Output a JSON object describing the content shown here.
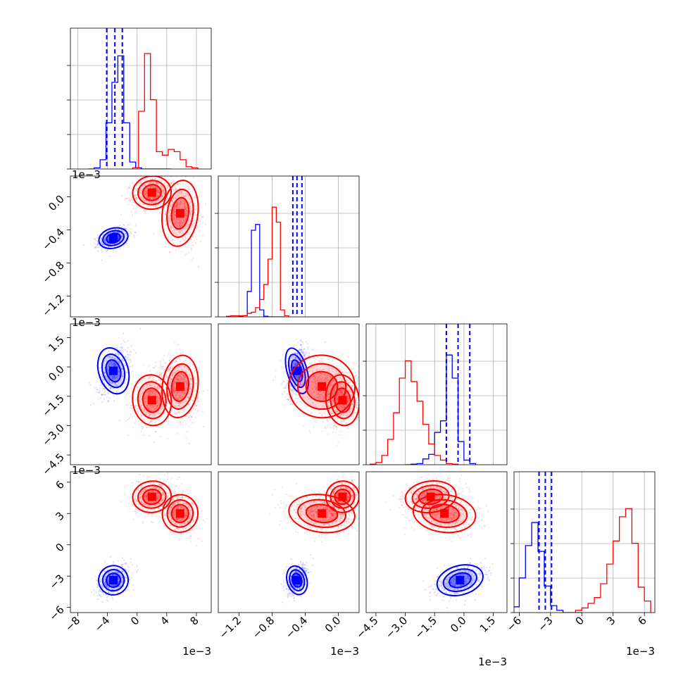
{
  "chart_data": {
    "type": "corner",
    "dims": 4,
    "colors": {
      "a": "#0000ff",
      "b": "#ff0000",
      "grid": "#b0b0b0"
    },
    "series": [
      {
        "color_key": "a"
      },
      {
        "color_key": "b"
      }
    ],
    "ranges": [
      [
        -9,
        10
      ],
      [
        -1.45,
        0.25
      ],
      [
        -5.0,
        2.2
      ],
      [
        -6.5,
        7.0
      ]
    ],
    "ticks": [
      [
        -8,
        -4,
        0,
        4,
        8
      ],
      [
        -1.2,
        -0.8,
        -0.4,
        0.0
      ],
      [
        -4.5,
        -3.0,
        -1.5,
        0.0,
        1.5
      ],
      [
        -6,
        -3,
        0,
        3,
        6
      ]
    ],
    "tick_labels": [
      [
        "−8",
        "−4",
        "0",
        "4",
        "8"
      ],
      [
        "−1.2",
        "−0.8",
        "−0.4",
        "0.0"
      ],
      [
        "−4.5",
        "−3.0",
        "−1.5",
        "0.0",
        "1.5"
      ],
      [
        "−6",
        "−3",
        "0",
        "3",
        "6"
      ]
    ],
    "offset_label": "1e−3",
    "grid": true,
    "quantile_lines": [
      [
        -4.1,
        -3.0,
        -2.0
      ],
      [
        -0.55,
        -0.5,
        -0.44
      ],
      [
        -0.9,
        -0.3,
        0.3
      ],
      [
        -4.1,
        -3.5,
        -2.9
      ]
    ],
    "histograms": [
      {
        "a": {
          "edges_start": -6.6,
          "bin": 0.8,
          "counts": [
            0.0,
            0.01,
            0.08,
            0.4,
            0.75,
            0.98,
            0.4,
            0.06,
            0.01,
            0,
            0,
            0,
            0,
            0
          ]
        },
        "b": {
          "edges_start": -0.6,
          "bin": 0.8,
          "counts": [
            0.01,
            0.5,
            1.0,
            0.6,
            0.15,
            0.12,
            0.17,
            0.15,
            0.08,
            0.02,
            0.01
          ]
        }
      },
      {
        "a": {
          "edges_start": -1.35,
          "bin": 0.05,
          "counts": [
            0,
            0,
            0,
            0.005,
            0.01,
            0.22,
            0.75,
            0.8,
            0.06,
            0.005,
            0,
            0,
            0,
            0
          ]
        },
        "b": {
          "edges_start": -1.35,
          "bin": 0.05,
          "counts": [
            0.005,
            0.01,
            0.01,
            0.01,
            0.01,
            0.03,
            0.04,
            0.08,
            0.15,
            0.28,
            0.5,
            0.95,
            0.82,
            0.06,
            0.01
          ]
        }
      },
      {
        "a": {
          "edges_start": -3.0,
          "bin": 0.3,
          "counts": [
            0,
            0.005,
            0.01,
            0.05,
            0.09,
            0.28,
            0.38,
            0.95,
            0.75,
            0.2,
            0.04,
            0.01
          ]
        },
        "b": {
          "edges_start": -4.8,
          "bin": 0.3,
          "counts": [
            0.005,
            0.02,
            0.08,
            0.22,
            0.45,
            0.75,
            0.9,
            0.72,
            0.55,
            0.35,
            0.18,
            0.08,
            0.04,
            0.01,
            0.005
          ]
        }
      },
      {
        "a": {
          "edges_start": -6.6,
          "bin": 0.6,
          "counts": [
            0.05,
            0.3,
            0.58,
            0.78,
            0.53,
            0.23,
            0.06,
            0.02,
            0,
            0,
            0
          ]
        },
        "b": {
          "edges_start": -0.6,
          "bin": 0.6,
          "counts": [
            0.02,
            0.04,
            0.08,
            0.13,
            0.25,
            0.42,
            0.62,
            0.83,
            0.9,
            0.6,
            0.22,
            0.1
          ]
        }
      }
    ],
    "clusters": [
      {
        "color_key": "a",
        "center": [
          -3.2,
          -0.5,
          -0.2,
          -3.4
        ],
        "sd": [
          1.0,
          0.06,
          0.6,
          0.7
        ],
        "corr": 0.45
      },
      {
        "color_key": "b",
        "center": [
          2.0,
          0.05,
          -1.7,
          4.6
        ],
        "sd": [
          1.3,
          0.1,
          0.65,
          0.75
        ],
        "corr": 0.2
      },
      {
        "color_key": "b",
        "center": [
          5.8,
          -0.2,
          -1.0,
          3.0
        ],
        "sd": [
          1.2,
          0.2,
          0.8,
          0.9
        ],
        "corr": -0.2
      }
    ]
  }
}
